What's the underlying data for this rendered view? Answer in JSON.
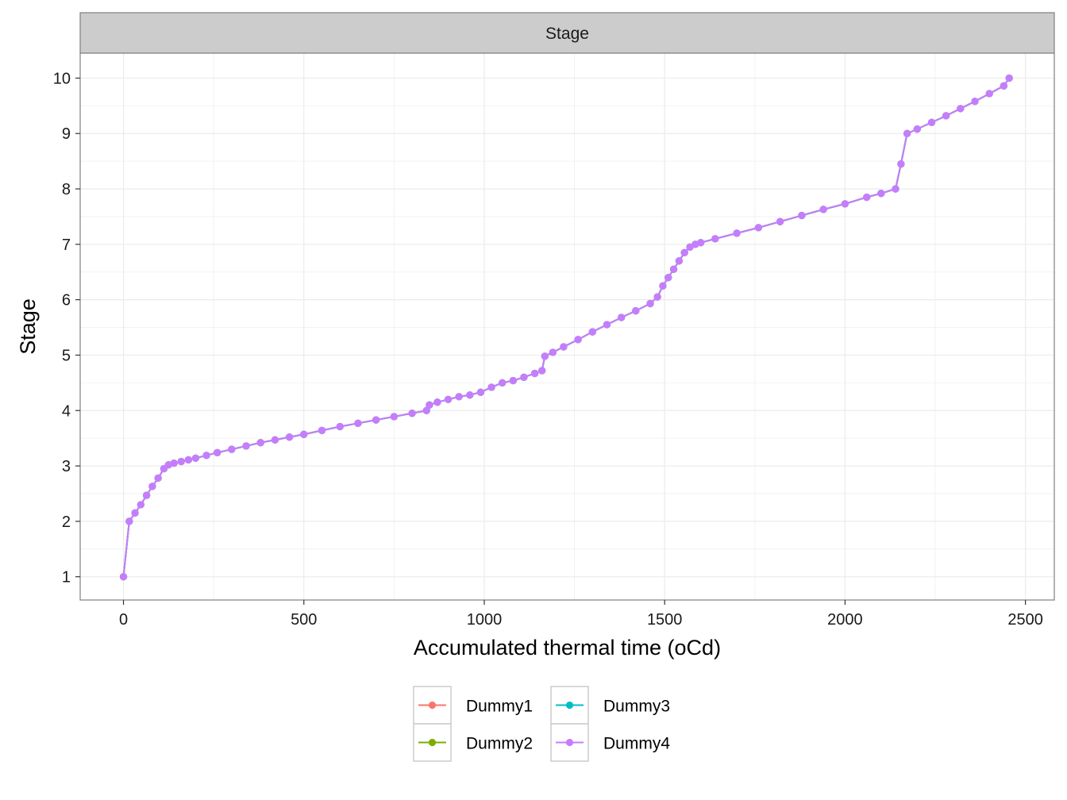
{
  "chart_data": {
    "type": "line",
    "facet_label": "Stage",
    "xlabel": "Accumulated thermal time (oCd)",
    "ylabel": "Stage",
    "xlim": [
      -120,
      2580
    ],
    "ylim": [
      0.58,
      10.45
    ],
    "x_ticks": [
      0,
      500,
      1000,
      1500,
      2000,
      2500
    ],
    "x_tick_labels": [
      "0",
      "500",
      "1000",
      "1500",
      "2000",
      "2500"
    ],
    "y_ticks": [
      1,
      2,
      3,
      4,
      5,
      6,
      7,
      8,
      9,
      10
    ],
    "y_tick_labels": [
      "1",
      "2",
      "3",
      "4",
      "5",
      "6",
      "7",
      "8",
      "9",
      "10"
    ],
    "grid": true,
    "legend_position": "bottom",
    "series": [
      {
        "name": "Dummy1",
        "color": "#F8766D",
        "x": [
          0,
          16,
          32,
          48,
          64,
          80,
          96,
          112,
          125,
          140,
          160,
          180,
          200,
          230,
          260,
          300,
          340,
          380,
          420,
          460,
          500,
          550,
          600,
          650,
          700,
          750,
          800,
          840,
          848,
          870,
          900,
          930,
          960,
          990,
          1020,
          1050,
          1080,
          1110,
          1140,
          1160,
          1168,
          1190,
          1220,
          1260,
          1300,
          1340,
          1380,
          1420,
          1460,
          1480,
          1495,
          1510,
          1525,
          1540,
          1555,
          1570,
          1585,
          1600,
          1640,
          1700,
          1760,
          1820,
          1880,
          1940,
          2000,
          2060,
          2100,
          2140,
          2155,
          2172,
          2200,
          2240,
          2280,
          2320,
          2360,
          2400,
          2440,
          2455
        ],
        "values": [
          1.0,
          2.0,
          2.15,
          2.3,
          2.47,
          2.63,
          2.78,
          2.95,
          3.02,
          3.05,
          3.08,
          3.11,
          3.14,
          3.19,
          3.24,
          3.3,
          3.36,
          3.42,
          3.47,
          3.52,
          3.57,
          3.64,
          3.71,
          3.77,
          3.83,
          3.89,
          3.95,
          4.0,
          4.1,
          4.15,
          4.2,
          4.25,
          4.28,
          4.33,
          4.42,
          4.5,
          4.54,
          4.6,
          4.67,
          4.72,
          4.98,
          5.05,
          5.15,
          5.28,
          5.42,
          5.55,
          5.68,
          5.8,
          5.93,
          6.05,
          6.25,
          6.4,
          6.55,
          6.7,
          6.85,
          6.95,
          7.0,
          7.03,
          7.1,
          7.2,
          7.3,
          7.41,
          7.52,
          7.63,
          7.73,
          7.85,
          7.92,
          8.0,
          8.45,
          9.0,
          9.08,
          9.2,
          9.32,
          9.45,
          9.58,
          9.72,
          9.86,
          10.0
        ]
      },
      {
        "name": "Dummy2",
        "color": "#7CAE00",
        "x": [
          0,
          16,
          32,
          48,
          64,
          80,
          96,
          112,
          125,
          140,
          160,
          180,
          200,
          230,
          260,
          300,
          340,
          380,
          420,
          460,
          500,
          550,
          600,
          650,
          700,
          750,
          800,
          840,
          848,
          870,
          900,
          930,
          960,
          990,
          1020,
          1050,
          1080,
          1110,
          1140,
          1160,
          1168,
          1190,
          1220,
          1260,
          1300,
          1340,
          1380,
          1420,
          1460,
          1480,
          1495,
          1510,
          1525,
          1540,
          1555,
          1570,
          1585,
          1600,
          1640,
          1700,
          1760,
          1820,
          1880,
          1940,
          2000,
          2060,
          2100,
          2140,
          2155,
          2172,
          2200,
          2240,
          2280,
          2320,
          2360,
          2400,
          2440,
          2455
        ],
        "values": [
          1.0,
          2.0,
          2.15,
          2.3,
          2.47,
          2.63,
          2.78,
          2.95,
          3.02,
          3.05,
          3.08,
          3.11,
          3.14,
          3.19,
          3.24,
          3.3,
          3.36,
          3.42,
          3.47,
          3.52,
          3.57,
          3.64,
          3.71,
          3.77,
          3.83,
          3.89,
          3.95,
          4.0,
          4.1,
          4.15,
          4.2,
          4.25,
          4.28,
          4.33,
          4.42,
          4.5,
          4.54,
          4.6,
          4.67,
          4.72,
          4.98,
          5.05,
          5.15,
          5.28,
          5.42,
          5.55,
          5.68,
          5.8,
          5.93,
          6.05,
          6.25,
          6.4,
          6.55,
          6.7,
          6.85,
          6.95,
          7.0,
          7.03,
          7.1,
          7.2,
          7.3,
          7.41,
          7.52,
          7.63,
          7.73,
          7.85,
          7.92,
          8.0,
          8.45,
          9.0,
          9.08,
          9.2,
          9.32,
          9.45,
          9.58,
          9.72,
          9.86,
          10.0
        ]
      },
      {
        "name": "Dummy3",
        "color": "#00BFC4",
        "x": [
          0,
          16,
          32,
          48,
          64,
          80,
          96,
          112,
          125,
          140,
          160,
          180,
          200,
          230,
          260,
          300,
          340,
          380,
          420,
          460,
          500,
          550,
          600,
          650,
          700,
          750,
          800,
          840,
          848,
          870,
          900,
          930,
          960,
          990,
          1020,
          1050,
          1080,
          1110,
          1140,
          1160,
          1168,
          1190,
          1220,
          1260,
          1300,
          1340,
          1380,
          1420,
          1460,
          1480,
          1495,
          1510,
          1525,
          1540,
          1555,
          1570,
          1585,
          1600,
          1640,
          1700,
          1760,
          1820,
          1880,
          1940,
          2000,
          2060,
          2100,
          2140,
          2155,
          2172,
          2200,
          2240,
          2280,
          2320,
          2360,
          2400,
          2440,
          2455
        ],
        "values": [
          1.0,
          2.0,
          2.15,
          2.3,
          2.47,
          2.63,
          2.78,
          2.95,
          3.02,
          3.05,
          3.08,
          3.11,
          3.14,
          3.19,
          3.24,
          3.3,
          3.36,
          3.42,
          3.47,
          3.52,
          3.57,
          3.64,
          3.71,
          3.77,
          3.83,
          3.89,
          3.95,
          4.0,
          4.1,
          4.15,
          4.2,
          4.25,
          4.28,
          4.33,
          4.42,
          4.5,
          4.54,
          4.6,
          4.67,
          4.72,
          4.98,
          5.05,
          5.15,
          5.28,
          5.42,
          5.55,
          5.68,
          5.8,
          5.93,
          6.05,
          6.25,
          6.4,
          6.55,
          6.7,
          6.85,
          6.95,
          7.0,
          7.03,
          7.1,
          7.2,
          7.3,
          7.41,
          7.52,
          7.63,
          7.73,
          7.85,
          7.92,
          8.0,
          8.45,
          9.0,
          9.08,
          9.2,
          9.32,
          9.45,
          9.58,
          9.72,
          9.86,
          10.0
        ]
      },
      {
        "name": "Dummy4",
        "color": "#C77CFF",
        "x": [
          0,
          16,
          32,
          48,
          64,
          80,
          96,
          112,
          125,
          140,
          160,
          180,
          200,
          230,
          260,
          300,
          340,
          380,
          420,
          460,
          500,
          550,
          600,
          650,
          700,
          750,
          800,
          840,
          848,
          870,
          900,
          930,
          960,
          990,
          1020,
          1050,
          1080,
          1110,
          1140,
          1160,
          1168,
          1190,
          1220,
          1260,
          1300,
          1340,
          1380,
          1420,
          1460,
          1480,
          1495,
          1510,
          1525,
          1540,
          1555,
          1570,
          1585,
          1600,
          1640,
          1700,
          1760,
          1820,
          1880,
          1940,
          2000,
          2060,
          2100,
          2140,
          2155,
          2172,
          2200,
          2240,
          2280,
          2320,
          2360,
          2400,
          2440,
          2455
        ],
        "values": [
          1.0,
          2.0,
          2.15,
          2.3,
          2.47,
          2.63,
          2.78,
          2.95,
          3.02,
          3.05,
          3.08,
          3.11,
          3.14,
          3.19,
          3.24,
          3.3,
          3.36,
          3.42,
          3.47,
          3.52,
          3.57,
          3.64,
          3.71,
          3.77,
          3.83,
          3.89,
          3.95,
          4.0,
          4.1,
          4.15,
          4.2,
          4.25,
          4.28,
          4.33,
          4.42,
          4.5,
          4.54,
          4.6,
          4.67,
          4.72,
          4.98,
          5.05,
          5.15,
          5.28,
          5.42,
          5.55,
          5.68,
          5.8,
          5.93,
          6.05,
          6.25,
          6.4,
          6.55,
          6.7,
          6.85,
          6.95,
          7.0,
          7.03,
          7.1,
          7.2,
          7.3,
          7.41,
          7.52,
          7.63,
          7.73,
          7.85,
          7.92,
          8.0,
          8.45,
          9.0,
          9.08,
          9.2,
          9.32,
          9.45,
          9.58,
          9.72,
          9.86,
          10.0
        ]
      }
    ]
  }
}
